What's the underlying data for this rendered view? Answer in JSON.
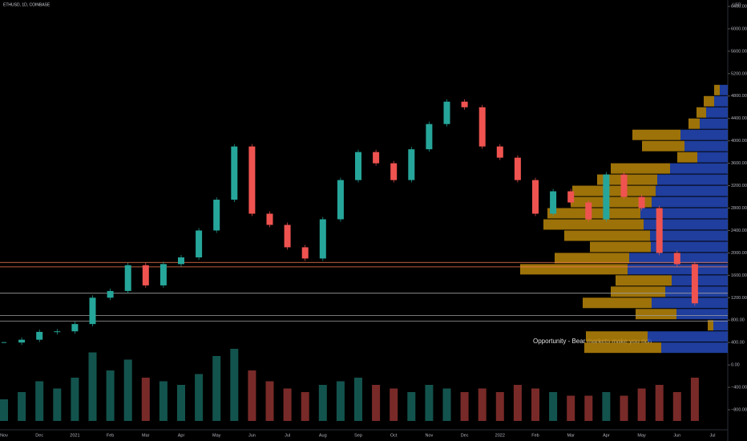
{
  "chart_data": {
    "type": "candlestick",
    "title": "ETHUSD, 1D, COINBASE",
    "y_axis_label": "USD",
    "annotation": "Opportunity - Bear markets make you rich",
    "categories": [
      "Nov",
      null,
      "Dec",
      null,
      "2021",
      null,
      "Feb",
      null,
      "Mar",
      null,
      "Apr",
      null,
      "May",
      null,
      "Jun",
      null,
      "Jul",
      null,
      "Aug",
      null,
      "Sep",
      null,
      "Oct",
      null,
      "Nov",
      null,
      "Dec",
      null,
      "2022",
      null,
      "Feb",
      null,
      "Mar",
      null,
      "Apr",
      null,
      "May",
      null,
      "Jun",
      null,
      "Jul"
    ],
    "values": [
      400,
      450,
      590,
      600,
      730,
      1200,
      1320,
      1780,
      1420,
      1800,
      1920,
      2400,
      2950,
      3900,
      2700,
      2500,
      2100,
      1900,
      2600,
      3300,
      3800,
      3600,
      3300,
      3850,
      4300,
      4700,
      4600,
      3900,
      3700,
      3300,
      2700,
      3100,
      2900,
      2600,
      3400,
      3000,
      2800,
      2000,
      1800,
      1100,
      null
    ],
    "volume": [
      30,
      40,
      55,
      45,
      60,
      95,
      70,
      85,
      60,
      55,
      50,
      65,
      90,
      100,
      70,
      55,
      45,
      40,
      50,
      55,
      60,
      50,
      45,
      40,
      50,
      45,
      40,
      45,
      40,
      50,
      45,
      40,
      35,
      35,
      40,
      35,
      45,
      50,
      40,
      60,
      null
    ],
    "up_color": "#26a69a",
    "down_color": "#ef5350",
    "ylim": [
      -1000,
      6400
    ],
    "yticks": [
      {
        "value": -800,
        "label": "−800.00"
      },
      {
        "value": -400,
        "label": "−400.00"
      },
      {
        "value": 0,
        "label": "0.00"
      },
      {
        "value": 400,
        "label": "400.00"
      },
      {
        "value": 800,
        "label": "800.00"
      },
      {
        "value": 1200,
        "label": "1200.00"
      },
      {
        "value": 1600,
        "label": "1600.00"
      },
      {
        "value": 2000,
        "label": "2000.00"
      },
      {
        "value": 2400,
        "label": "2400.00"
      },
      {
        "value": 2800,
        "label": "2800.00"
      },
      {
        "value": 3200,
        "label": "3200.00"
      },
      {
        "value": 3600,
        "label": "3600.00"
      },
      {
        "value": 4000,
        "label": "4000.00"
      },
      {
        "value": 4400,
        "label": "4400.00"
      },
      {
        "value": 4800,
        "label": "4800.00"
      },
      {
        "value": 5200,
        "label": "5200.00"
      },
      {
        "value": 5600,
        "label": "5600.00"
      },
      {
        "value": 6000,
        "label": "6000.00"
      },
      {
        "value": 6400,
        "label": "6400.00"
      }
    ],
    "levels": [
      {
        "value": 1830,
        "color": "#f57c4f"
      },
      {
        "value": 1750,
        "color": "#f57c4f"
      },
      {
        "value": 1280,
        "color": "#9e9e9e"
      },
      {
        "value": 880,
        "color": "#9e9e9e"
      },
      {
        "value": 780,
        "color": "#9e9e9e"
      }
    ],
    "volume_profile": {
      "prices": [
        4800,
        4600,
        4400,
        4200,
        4000,
        3800,
        3600,
        3400,
        3200,
        3000,
        2800,
        2600,
        2400,
        2200,
        2000,
        1800,
        1600,
        1400,
        1200,
        1000,
        800,
        600,
        400,
        200
      ],
      "up": [
        7,
        13,
        12,
        14,
        60,
        53,
        25,
        74,
        75,
        104,
        101,
        116,
        125,
        107,
        76,
        93,
        134,
        70,
        68,
        86,
        51,
        7,
        77,
        96
      ],
      "down": [
        10,
        17,
        27,
        35,
        59,
        54,
        38,
        72,
        88,
        90,
        95,
        109,
        105,
        97,
        96,
        123,
        125,
        70,
        78,
        95,
        64,
        18,
        100,
        83
      ],
      "up_color": "#b8860b",
      "down_color": "#2449b8"
    }
  }
}
